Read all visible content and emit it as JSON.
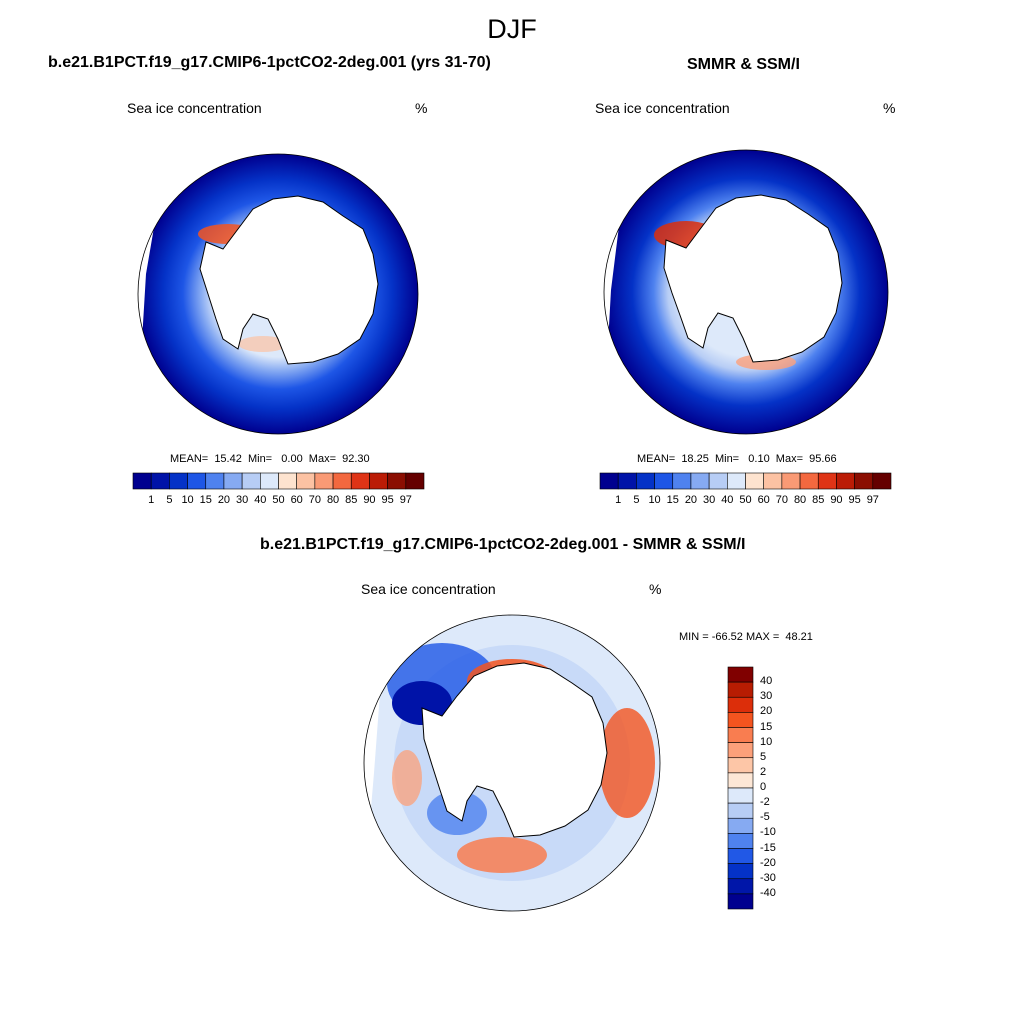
{
  "figure": {
    "season": "DJF"
  },
  "panel_model": {
    "title": "b.e21.B1PCT.f19_g17.CMIP6-1pctCO2-2deg.001 (yrs 31-70)",
    "variable": "Sea ice concentration",
    "units": "%",
    "stats": "MEAN=  15.42  Min=   0.00  Max=  92.30"
  },
  "panel_obs": {
    "title": "SMMR & SSM/I",
    "variable": "Sea ice concentration",
    "units": "%",
    "stats": "MEAN=  18.25  Min=   0.10  Max=  95.66"
  },
  "panel_diff": {
    "title": "b.e21.B1PCT.f19_g17.CMIP6-1pctCO2-2deg.001 - SMMR & SSM/I",
    "variable": "Sea ice concentration",
    "units": "%",
    "stats": "MIN = -66.52 MAX =  48.21"
  },
  "colorbar_conc": {
    "labels": [
      "1",
      "5",
      "10",
      "15",
      "20",
      "30",
      "40",
      "50",
      "60",
      "70",
      "80",
      "85",
      "90",
      "95",
      "97"
    ],
    "colors": [
      "#00008f",
      "#0013a8",
      "#0432c7",
      "#1e56e6",
      "#4f82ef",
      "#86aaf2",
      "#b7cdf5",
      "#dde9fa",
      "#fde3cf",
      "#fcc2a3",
      "#f99a75",
      "#f3683f",
      "#df3416",
      "#bb1c06",
      "#8b0e02",
      "#650000"
    ]
  },
  "colorbar_diff": {
    "labels": [
      "40",
      "30",
      "20",
      "15",
      "10",
      "5",
      "2",
      "0",
      "-2",
      "-5",
      "-10",
      "-15",
      "-20",
      "-30",
      "-40"
    ],
    "colors": [
      "#800000",
      "#b71c02",
      "#dc2e0a",
      "#f4541f",
      "#f97d50",
      "#fca07a",
      "#fdc6a7",
      "#fde7d6",
      "#dde9fa",
      "#b7cdf5",
      "#86aaf2",
      "#4f82ef",
      "#2158e6",
      "#0432c7",
      "#0016a9",
      "#00008f"
    ]
  }
}
